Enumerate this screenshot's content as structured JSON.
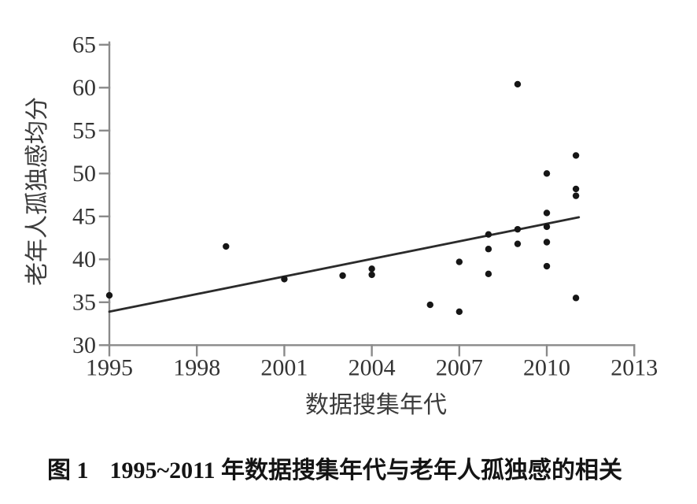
{
  "figure": {
    "caption_label": "图 1",
    "caption_text": "1995~2011 年数据搜集年代与老年人孤独感的相关"
  },
  "chart_data": {
    "type": "scatter",
    "title": "",
    "xlabel": "数据搜集年代",
    "ylabel": "老年人孤独感均分",
    "xlim": [
      1995,
      2013
    ],
    "ylim": [
      30,
      65
    ],
    "x_ticks": [
      1995,
      1998,
      2001,
      2004,
      2007,
      2010,
      2013
    ],
    "y_ticks": [
      30,
      35,
      40,
      45,
      50,
      55,
      60,
      65
    ],
    "grid": false,
    "legend": false,
    "marker_color": "#161616",
    "axis_color": "#8a8a8a",
    "trend_line_color": "#2b2b2b",
    "trend_line": {
      "x1": 1995,
      "y1": 33.9,
      "x2": 2011.1,
      "y2": 44.9
    },
    "points": [
      {
        "x": 1995,
        "y": 35.8
      },
      {
        "x": 1999,
        "y": 41.5
      },
      {
        "x": 2001,
        "y": 37.7
      },
      {
        "x": 2003,
        "y": 38.1
      },
      {
        "x": 2004,
        "y": 38.9
      },
      {
        "x": 2004,
        "y": 38.2
      },
      {
        "x": 2006,
        "y": 34.7
      },
      {
        "x": 2007,
        "y": 33.9
      },
      {
        "x": 2007,
        "y": 39.7
      },
      {
        "x": 2008,
        "y": 42.9
      },
      {
        "x": 2008,
        "y": 41.2
      },
      {
        "x": 2008,
        "y": 38.3
      },
      {
        "x": 2009,
        "y": 60.4
      },
      {
        "x": 2009,
        "y": 43.5
      },
      {
        "x": 2009,
        "y": 41.8
      },
      {
        "x": 2010,
        "y": 50.0
      },
      {
        "x": 2010,
        "y": 45.4
      },
      {
        "x": 2010,
        "y": 43.8
      },
      {
        "x": 2010,
        "y": 42.0
      },
      {
        "x": 2010,
        "y": 39.2
      },
      {
        "x": 2011,
        "y": 52.1
      },
      {
        "x": 2011,
        "y": 48.2
      },
      {
        "x": 2011,
        "y": 47.4
      },
      {
        "x": 2011,
        "y": 35.5
      }
    ]
  }
}
